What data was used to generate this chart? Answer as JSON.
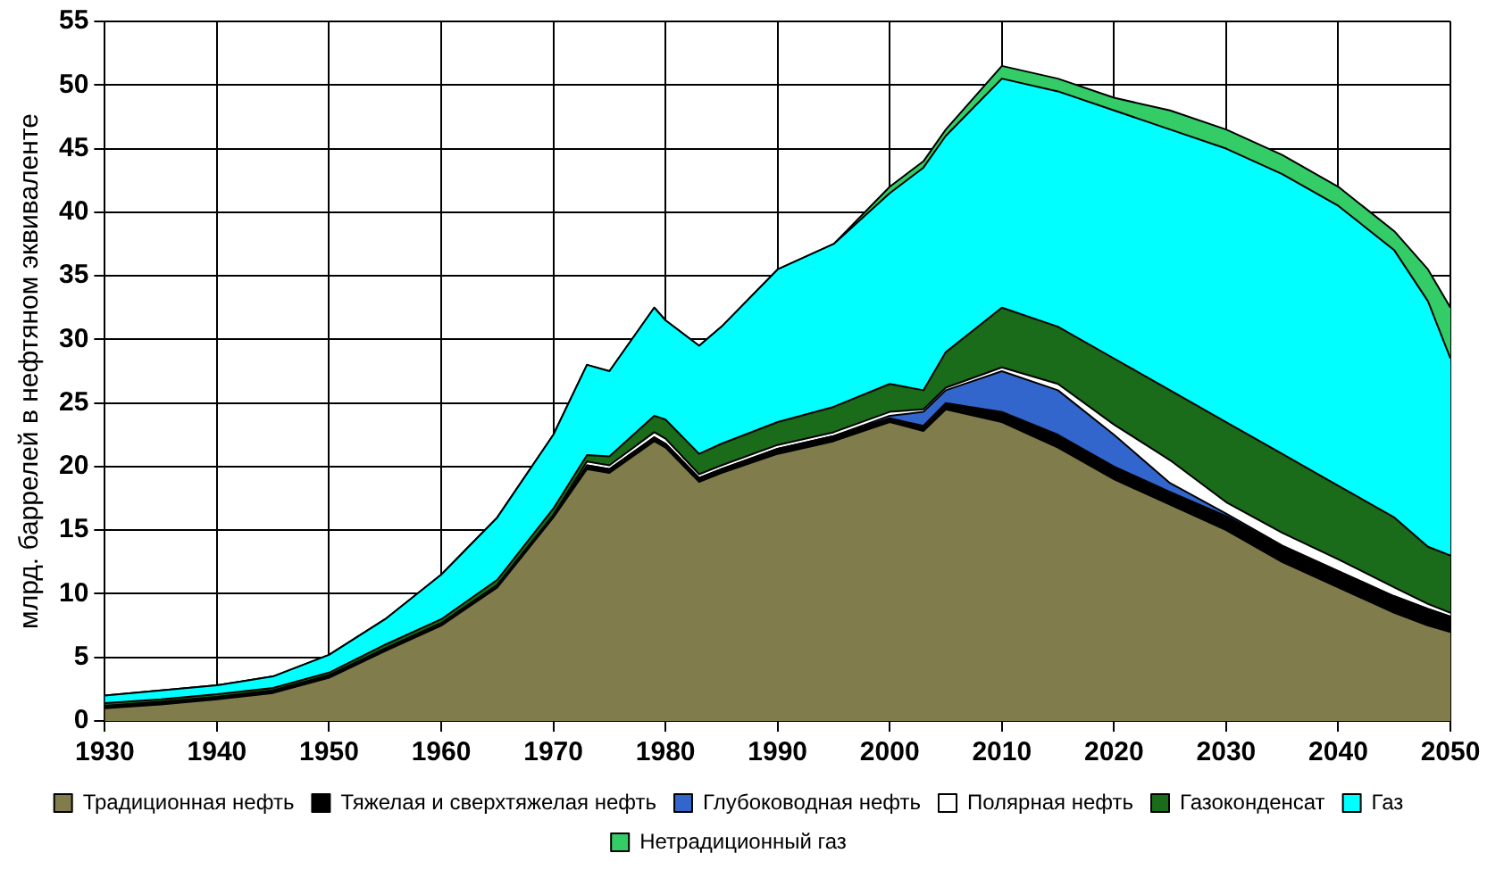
{
  "chart_data": {
    "type": "area",
    "stacked": true,
    "ylabel": "млрд. баррелей в нефтяном эквиваленте",
    "x": [
      1930,
      1935,
      1940,
      1945,
      1950,
      1955,
      1960,
      1965,
      1970,
      1973,
      1975,
      1979,
      1980,
      1983,
      1985,
      1990,
      1995,
      2000,
      2003,
      2005,
      2010,
      2015,
      2020,
      2025,
      2030,
      2035,
      2040,
      2045,
      2048,
      2050
    ],
    "xlim": [
      1930,
      2050
    ],
    "xticks": [
      1930,
      1940,
      1950,
      1960,
      1970,
      1980,
      1990,
      2000,
      2010,
      2020,
      2030,
      2040,
      2050
    ],
    "ylim": [
      0,
      55
    ],
    "yticks": [
      0,
      5,
      10,
      15,
      20,
      25,
      30,
      35,
      40,
      45,
      50,
      55
    ],
    "grid": true,
    "legend": "bottom",
    "series": [
      {
        "name": "Традиционная нефть",
        "color": "#807c4c",
        "values": [
          1.0,
          1.3,
          1.7,
          2.2,
          3.4,
          5.5,
          7.5,
          10.5,
          16.0,
          19.8,
          19.5,
          22.0,
          21.5,
          18.8,
          19.5,
          21.0,
          22.0,
          23.5,
          22.8,
          24.5,
          23.5,
          21.5,
          19.0,
          17.0,
          15.0,
          12.5,
          10.5,
          8.5,
          7.5,
          7.0
        ]
      },
      {
        "name": "Тяжелая и сверхтяжелая нефть",
        "color": "#000000",
        "values": [
          0.1,
          0.1,
          0.1,
          0.1,
          0.1,
          0.1,
          0.1,
          0.1,
          0.1,
          0.3,
          0.3,
          0.3,
          0.3,
          0.3,
          0.3,
          0.4,
          0.4,
          0.3,
          0.4,
          0.5,
          0.8,
          1.0,
          1.0,
          1.0,
          1.1,
          1.2,
          1.2,
          1.3,
          1.3,
          1.2
        ]
      },
      {
        "name": "Глубоководная нефть",
        "color": "#3366cc",
        "values": [
          0,
          0,
          0,
          0,
          0,
          0,
          0,
          0,
          0,
          0,
          0,
          0,
          0,
          0,
          0,
          0,
          0,
          0.2,
          1.1,
          1.0,
          3.2,
          3.5,
          2.5,
          0.7,
          0.2,
          0.1,
          0.1,
          0,
          0,
          0
        ]
      },
      {
        "name": "Полярная нефть",
        "color": "#ffffff",
        "values": [
          0.1,
          0.1,
          0.1,
          0.1,
          0.1,
          0.1,
          0.1,
          0.1,
          0.1,
          0.3,
          0.3,
          0.4,
          0.4,
          0.3,
          0.3,
          0.3,
          0.3,
          0.3,
          0.2,
          0.2,
          0.3,
          0.5,
          0.8,
          1.8,
          0.9,
          1.0,
          0.9,
          0.7,
          0.4,
          0.3
        ]
      },
      {
        "name": "Газоконденсат",
        "color": "#1a6b1a",
        "values": [
          0.2,
          0.2,
          0.2,
          0.2,
          0.2,
          0.3,
          0.3,
          0.4,
          0.5,
          0.5,
          0.7,
          1.3,
          1.5,
          1.6,
          1.7,
          1.8,
          2.0,
          2.2,
          1.5,
          2.8,
          4.7,
          4.5,
          5.2,
          5.5,
          6.3,
          6.2,
          5.8,
          5.5,
          4.5,
          4.5
        ]
      },
      {
        "name": "Газ",
        "color": "#00ffff",
        "values": [
          0.6,
          0.7,
          0.7,
          0.9,
          1.4,
          2.0,
          3.5,
          4.9,
          5.8,
          7.1,
          6.7,
          8.5,
          7.8,
          8.5,
          9.2,
          12.0,
          12.8,
          15.0,
          17.5,
          17.0,
          18.0,
          18.5,
          19.5,
          20.5,
          21.5,
          22.0,
          22.0,
          21.0,
          19.3,
          15.5
        ]
      },
      {
        "name": "Нетрадиционный газ",
        "color": "#33cc66",
        "values": [
          0,
          0,
          0,
          0,
          0,
          0,
          0,
          0,
          0,
          0,
          0,
          0,
          0,
          0,
          0,
          0,
          0,
          0.5,
          0.5,
          0.5,
          1.0,
          1.0,
          1.0,
          1.5,
          1.5,
          1.5,
          1.5,
          1.5,
          2.5,
          4.0
        ]
      }
    ]
  }
}
